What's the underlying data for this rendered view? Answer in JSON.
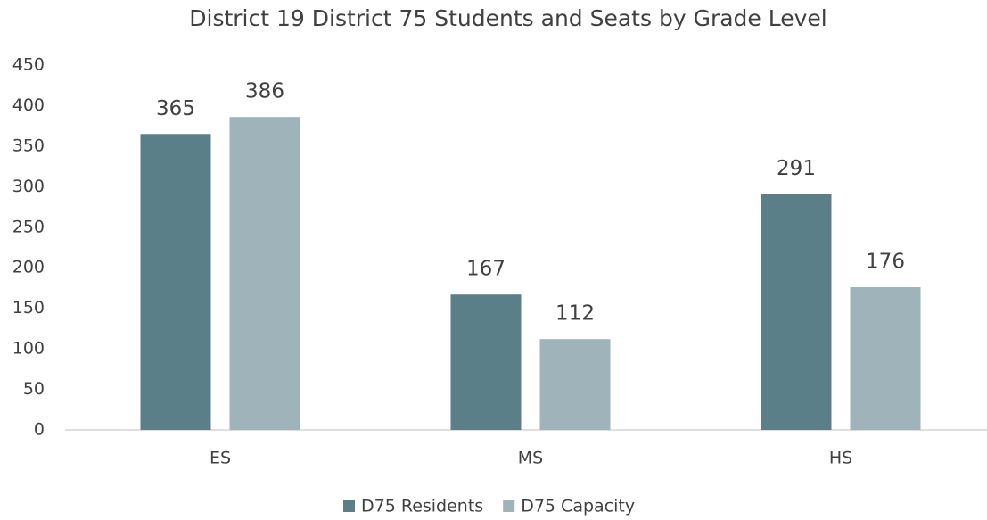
{
  "chart_data": {
    "type": "bar",
    "title": "District 19 District 75 Students and Seats by Grade Level",
    "categories": [
      "ES",
      "MS",
      "HS"
    ],
    "series": [
      {
        "name": "D75 Residents",
        "color": "#5b7f89",
        "values": [
          365,
          167,
          291
        ]
      },
      {
        "name": "D75 Capacity",
        "color": "#9fb3ba",
        "values": [
          386,
          112,
          176
        ]
      }
    ],
    "ylim": [
      0,
      450
    ],
    "yticks": [
      0,
      50,
      100,
      150,
      200,
      250,
      300,
      350,
      400,
      450
    ],
    "grid": false,
    "legend": "bottom"
  }
}
